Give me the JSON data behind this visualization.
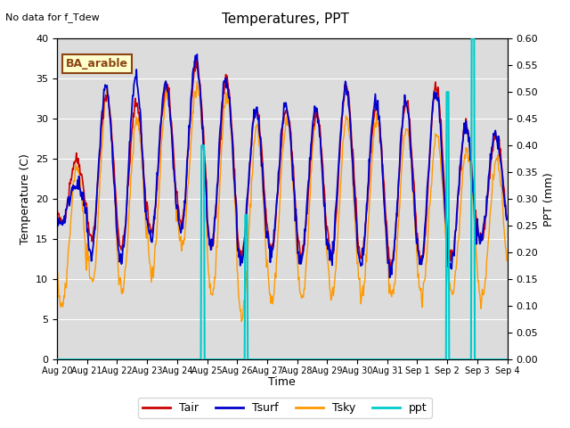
{
  "title": "Temperatures, PPT",
  "subtitle": "No data for f_Tdew",
  "annotation": "BA_arable",
  "xlabel": "Time",
  "ylabel_left": "Temperature (C)",
  "ylabel_right": "PPT (mm)",
  "ylim_left": [
    0,
    40
  ],
  "ylim_right": [
    0.0,
    0.6
  ],
  "yticks_left": [
    0,
    5,
    10,
    15,
    20,
    25,
    30,
    35,
    40
  ],
  "yticks_right": [
    0.0,
    0.05,
    0.1,
    0.15,
    0.2,
    0.25,
    0.3,
    0.35,
    0.4,
    0.45,
    0.5,
    0.55,
    0.6
  ],
  "xtick_labels": [
    "Aug 20",
    "Aug 21",
    "Aug 22",
    "Aug 23",
    "Aug 24",
    "Aug 25",
    "Aug 26",
    "Aug 27",
    "Aug 28",
    "Aug 29",
    "Aug 30",
    "Aug 31",
    "Sep 1",
    "Sep 2",
    "Sep 3",
    "Sep 4"
  ],
  "colors": {
    "Tair": "#cc0000",
    "Tsurf": "#0000cc",
    "Tsky": "#ff9900",
    "ppt": "#00cccc",
    "bg": "#dcdcdc",
    "annotation_bg": "#ffffcc",
    "annotation_border": "#8b4513"
  },
  "num_days": 15,
  "points_per_day": 48
}
